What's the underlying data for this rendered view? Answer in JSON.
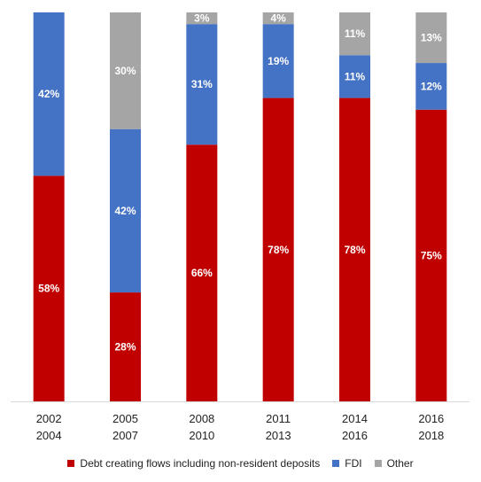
{
  "chart_data": {
    "type": "bar",
    "stacked": true,
    "categories": [
      [
        "2002",
        "2004"
      ],
      [
        "2005",
        "2007"
      ],
      [
        "2008",
        "2010"
      ],
      [
        "2011",
        "2013"
      ],
      [
        "2014",
        "2016"
      ],
      [
        "2016",
        "2018"
      ]
    ],
    "series": [
      {
        "name": "Debt creating flows including non-resident deposits",
        "color": "#c00000",
        "label_color": "#ffffff",
        "values": [
          58,
          28,
          66,
          78,
          78,
          75
        ],
        "labels": [
          "58%",
          "28%",
          "66%",
          "78%",
          "78%",
          "75%"
        ]
      },
      {
        "name": "FDI",
        "color": "#4472c4",
        "label_color": "#ffffff",
        "values": [
          42,
          42,
          31,
          19,
          11,
          12
        ],
        "labels": [
          "42%",
          "42%",
          "31%",
          "19%",
          "11%",
          "12%"
        ]
      },
      {
        "name": "Other",
        "color": "#a5a5a5",
        "label_color": "#ffffff",
        "values": [
          0,
          30,
          3,
          4,
          11,
          13
        ],
        "labels": [
          "",
          "30%",
          "3%",
          "4%",
          "11%",
          "13%"
        ]
      }
    ],
    "ylim": [
      0,
      100
    ],
    "grid": false,
    "legend_position": "bottom",
    "title": "",
    "xlabel": "",
    "ylabel": ""
  }
}
